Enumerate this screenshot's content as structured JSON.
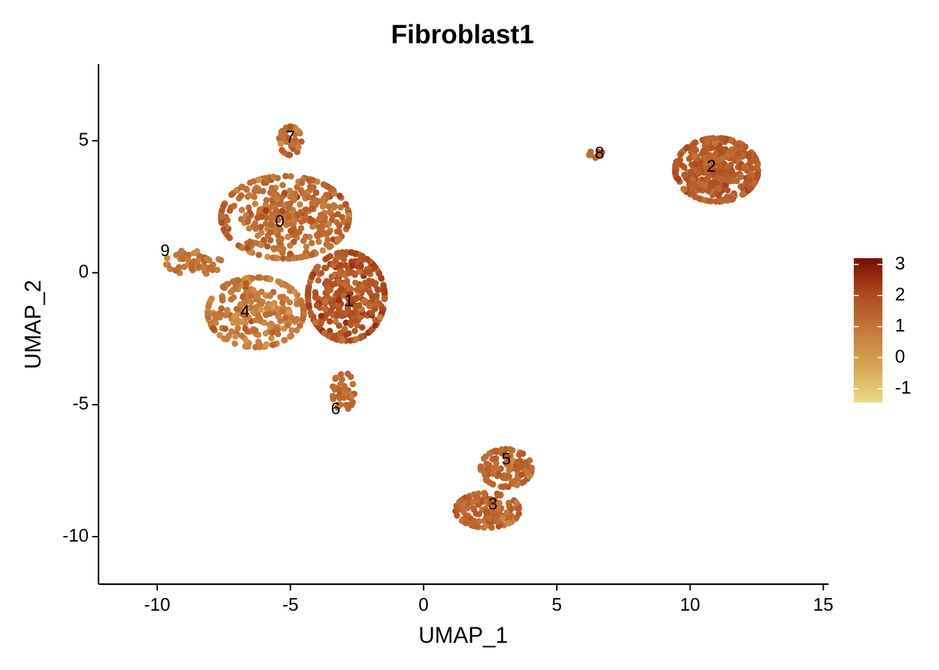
{
  "chart_data": {
    "type": "scatter",
    "title": "Fibroblast1",
    "xlabel": "UMAP_1",
    "ylabel": "UMAP_2",
    "xlim": [
      -12.2,
      15.2
    ],
    "ylim": [
      -11.8,
      7.9
    ],
    "x_ticks": [
      -10,
      -5,
      0,
      5,
      10,
      15
    ],
    "x_tick_labels": [
      "-10",
      "-5",
      "0",
      "5",
      "10",
      "15"
    ],
    "y_ticks": [
      5,
      0,
      -5,
      -10
    ],
    "y_tick_labels": [
      "5",
      "0",
      "-5",
      "-10"
    ],
    "grid": false,
    "legend_position": "right",
    "colorbar": {
      "min": -1.45,
      "max": 3.2,
      "ticks": [
        3,
        2,
        1,
        0,
        -1
      ],
      "tick_labels": [
        "3",
        "2",
        "1",
        "0",
        "-1"
      ],
      "colors": [
        "#ecdc88",
        "#d7a552",
        "#c57a3c",
        "#ad4a1f",
        "#7a0c00"
      ]
    },
    "cluster_labels": [
      {
        "label": "0",
        "x": -5.4,
        "y": 1.9
      },
      {
        "label": "1",
        "x": -2.8,
        "y": -1.1
      },
      {
        "label": "2",
        "x": 10.8,
        "y": 4.0
      },
      {
        "label": "3",
        "x": 2.6,
        "y": -8.8
      },
      {
        "label": "4",
        "x": -6.7,
        "y": -1.5
      },
      {
        "label": "5",
        "x": 3.1,
        "y": -7.1
      },
      {
        "label": "6",
        "x": -3.3,
        "y": -5.2
      },
      {
        "label": "7",
        "x": -5.0,
        "y": 5.1
      },
      {
        "label": "8",
        "x": 6.6,
        "y": 4.5
      },
      {
        "label": "9",
        "x": -9.7,
        "y": 0.8
      }
    ],
    "clusters": [
      {
        "id": "0",
        "center": [
          -5.2,
          2.1
        ],
        "spread": [
          2.0,
          1.3
        ],
        "n": 420,
        "mean": 1.2,
        "sd": 0.35
      },
      {
        "id": "1",
        "center": [
          -2.9,
          -0.9
        ],
        "spread": [
          1.2,
          1.4
        ],
        "n": 380,
        "mean": 1.75,
        "sd": 0.35
      },
      {
        "id": "4",
        "center": [
          -6.3,
          -1.5
        ],
        "spread": [
          1.5,
          1.1
        ],
        "n": 260,
        "mean": 0.75,
        "sd": 0.4
      },
      {
        "id": "7",
        "center": [
          -5.0,
          5.0
        ],
        "spread": [
          0.35,
          0.45
        ],
        "n": 40,
        "mean": 1.2,
        "sd": 0.3
      },
      {
        "id": "9",
        "center": [
          -8.6,
          0.4
        ],
        "spread": [
          0.9,
          0.4
        ],
        "n": 50,
        "mean": 1.0,
        "sd": 0.3
      },
      {
        "id": "6",
        "center": [
          -3.0,
          -4.5
        ],
        "spread": [
          0.35,
          0.6
        ],
        "n": 40,
        "mean": 1.3,
        "sd": 0.35
      },
      {
        "id": "2",
        "center": [
          11.0,
          3.9
        ],
        "spread": [
          1.3,
          1.0
        ],
        "n": 420,
        "mean": 1.55,
        "sd": 0.3
      },
      {
        "id": "8",
        "center": [
          6.5,
          4.5
        ],
        "spread": [
          0.25,
          0.12
        ],
        "n": 10,
        "mean": 1.4,
        "sd": 0.2
      },
      {
        "id": "5",
        "center": [
          3.1,
          -7.4
        ],
        "spread": [
          0.8,
          0.6
        ],
        "n": 110,
        "mean": 1.3,
        "sd": 0.3
      },
      {
        "id": "3",
        "center": [
          2.4,
          -9.0
        ],
        "spread": [
          1.0,
          0.55
        ],
        "n": 130,
        "mean": 1.3,
        "sd": 0.3
      }
    ]
  }
}
